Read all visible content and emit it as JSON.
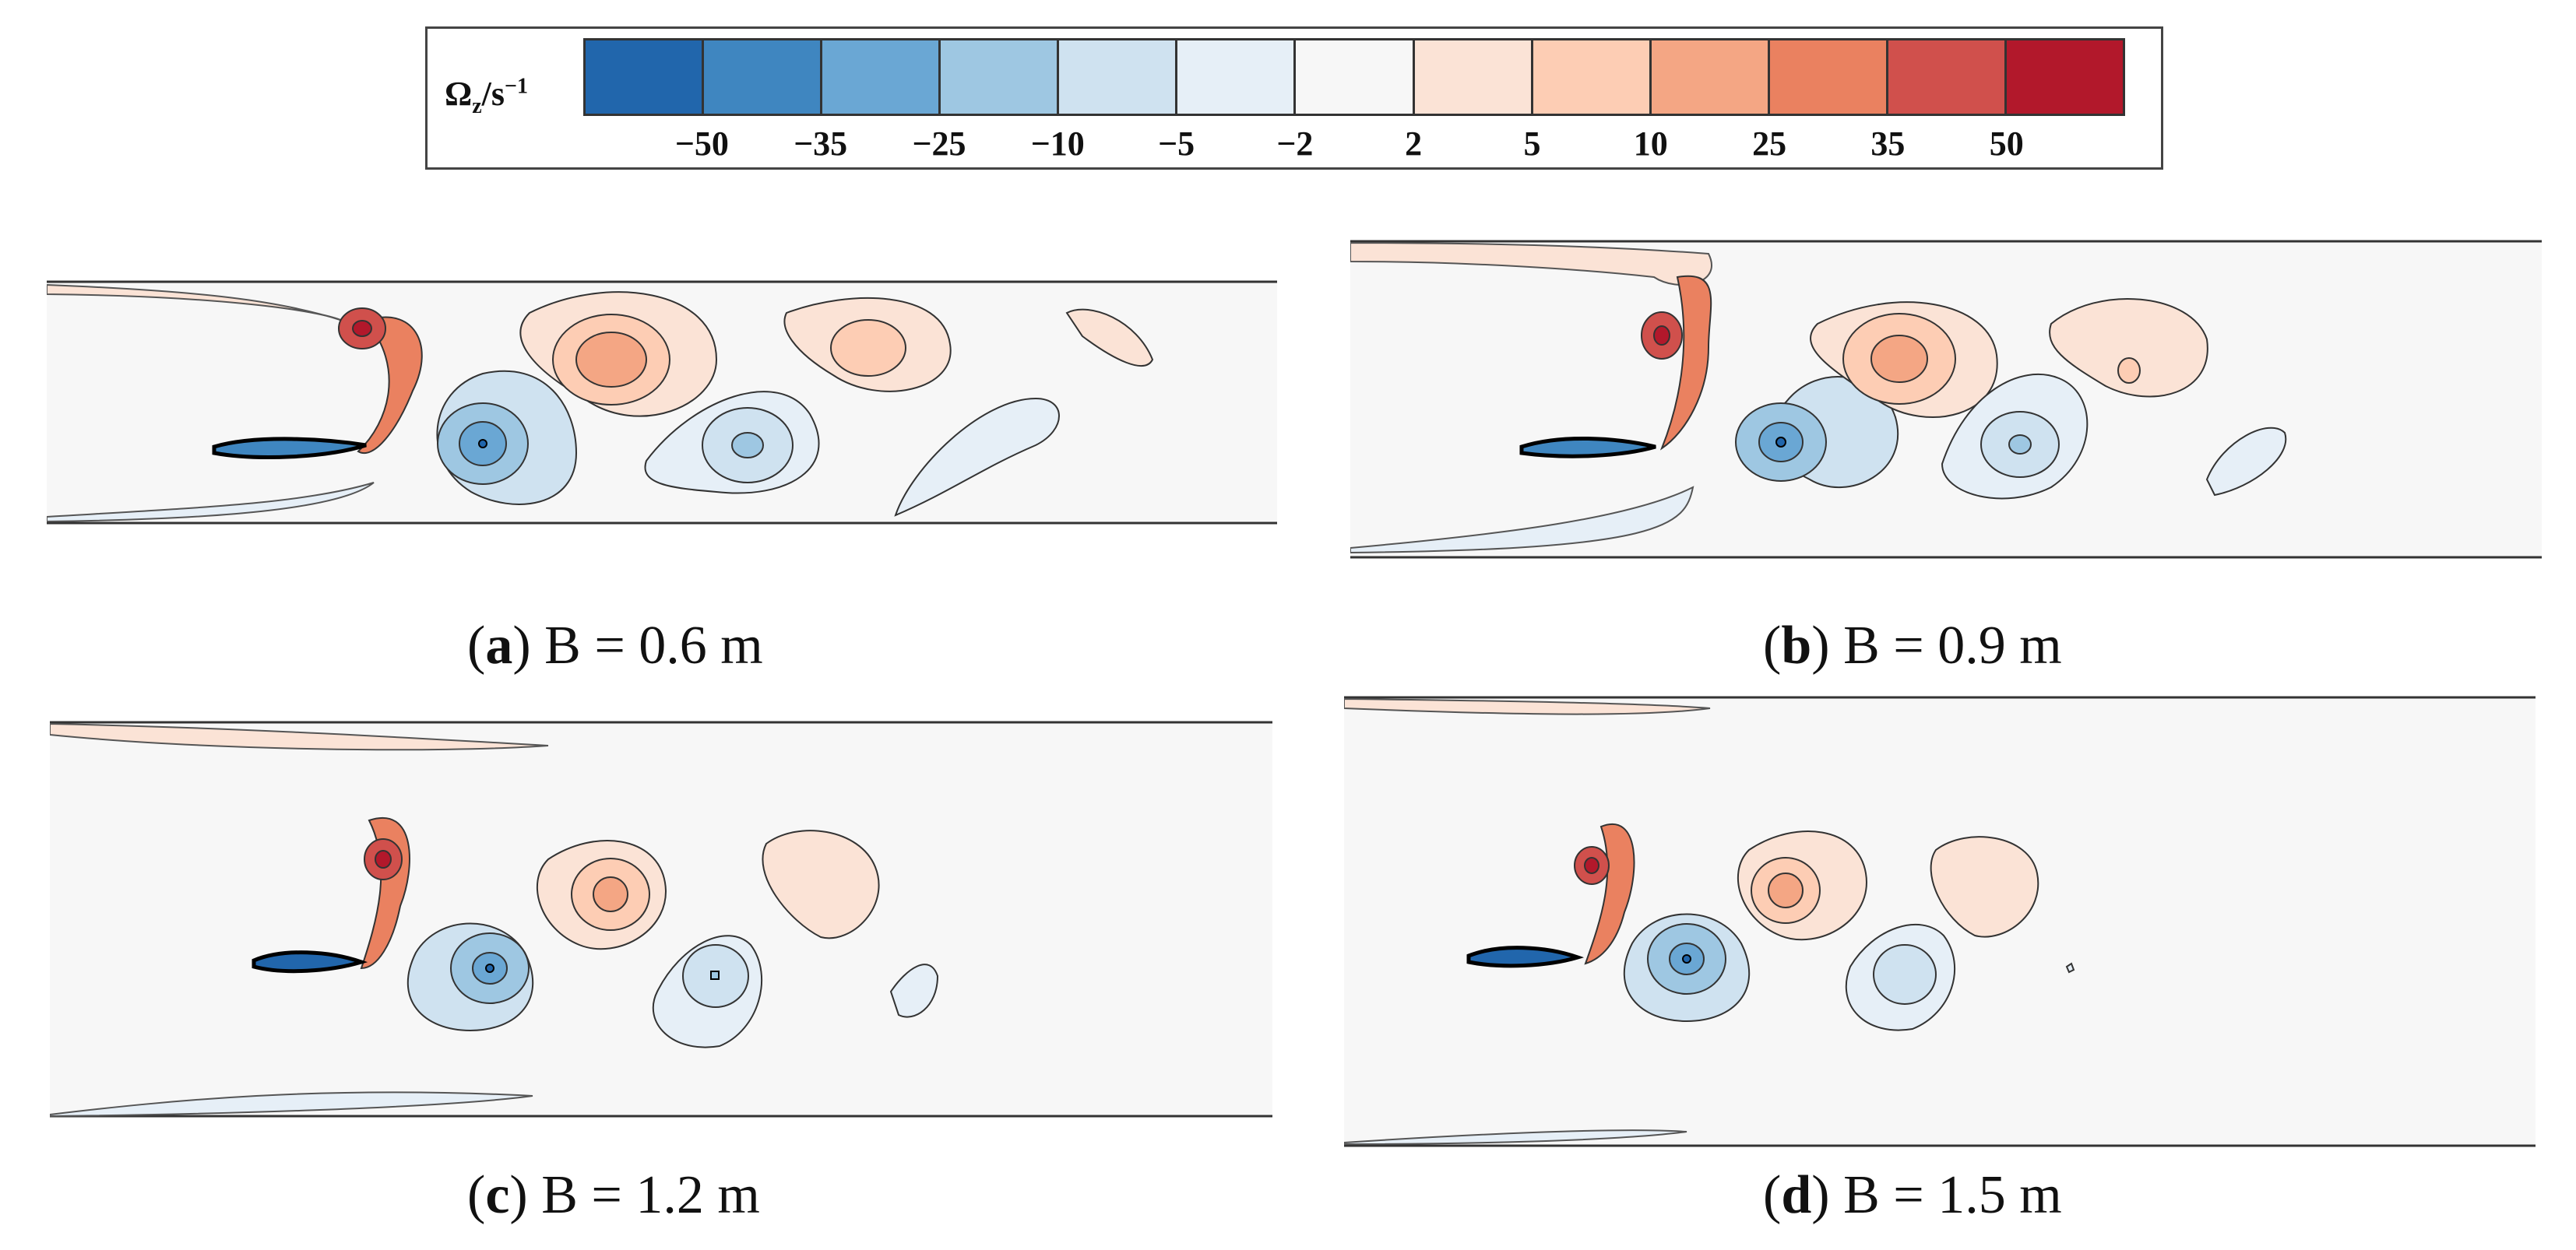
{
  "colorbar": {
    "label": {
      "symbol": "Ω",
      "subscript": "z",
      "slash": "/s",
      "superscript": "−1"
    },
    "ticks": [
      "−50",
      "−35",
      "−25",
      "−10",
      "−5",
      "−2",
      "2",
      "5",
      "10",
      "25",
      "35",
      "50"
    ],
    "colors": [
      "#2166ac",
      "#3f86c0",
      "#6aa7d4",
      "#9ec7e2",
      "#cfe2f0",
      "#e6eff7",
      "#f7f7f7",
      "#fbe3d6",
      "#fdcdb4",
      "#f4a684",
      "#ea8160",
      "#d0504c",
      "#b2182b"
    ]
  },
  "panels": [
    {
      "letter": "a",
      "text": "B = 0.6 m"
    },
    {
      "letter": "b",
      "text": "B = 0.9 m"
    },
    {
      "letter": "c",
      "text": "B = 1.2 m"
    },
    {
      "letter": "d",
      "text": "B = 1.5 m"
    }
  ]
}
